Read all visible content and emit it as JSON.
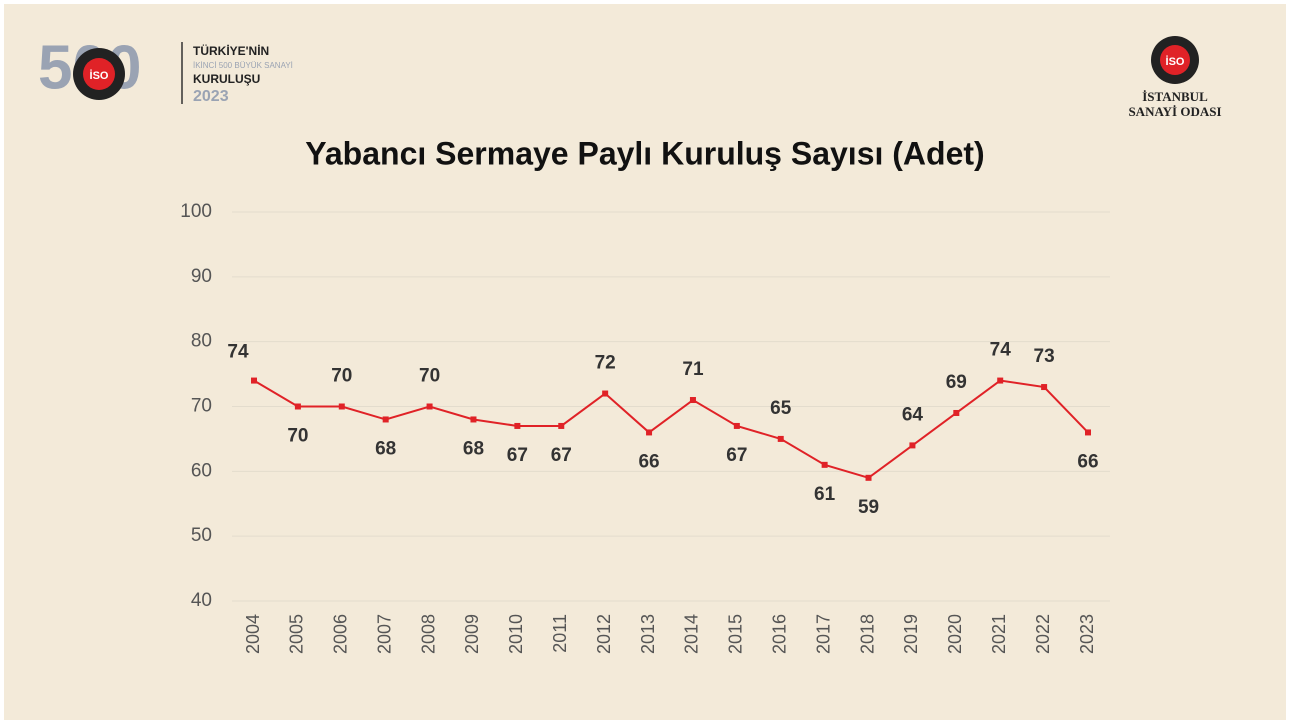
{
  "header": {
    "logo_number": "500",
    "logo_badge": "İSO",
    "line1": "TÜRKİYE'NİN",
    "line2": "İKİNCİ 500 BÜYÜK SANAYİ",
    "line3": "KURULUŞU",
    "year": "2023",
    "org_badge": "İSO",
    "org_line1": "İSTANBUL",
    "org_line2": "SANAYİ ODASI"
  },
  "chart_data": {
    "type": "line",
    "title": "Yabancı Sermaye Paylı Kuruluş Sayısı (Adet)",
    "categories": [
      "2004",
      "2005",
      "2006",
      "2007",
      "2008",
      "2009",
      "2010",
      "2011",
      "2012",
      "2013",
      "2014",
      "2015",
      "2016",
      "2017",
      "2018",
      "2019",
      "2020",
      "2021",
      "2022",
      "2023"
    ],
    "values": [
      74,
      70,
      70,
      68,
      70,
      68,
      67,
      67,
      72,
      66,
      71,
      67,
      65,
      61,
      59,
      64,
      69,
      74,
      73,
      66
    ],
    "color": "#e02227",
    "ylim": [
      40,
      100
    ],
    "yticks": [
      40,
      50,
      60,
      70,
      80,
      90,
      100
    ],
    "grid": true
  }
}
